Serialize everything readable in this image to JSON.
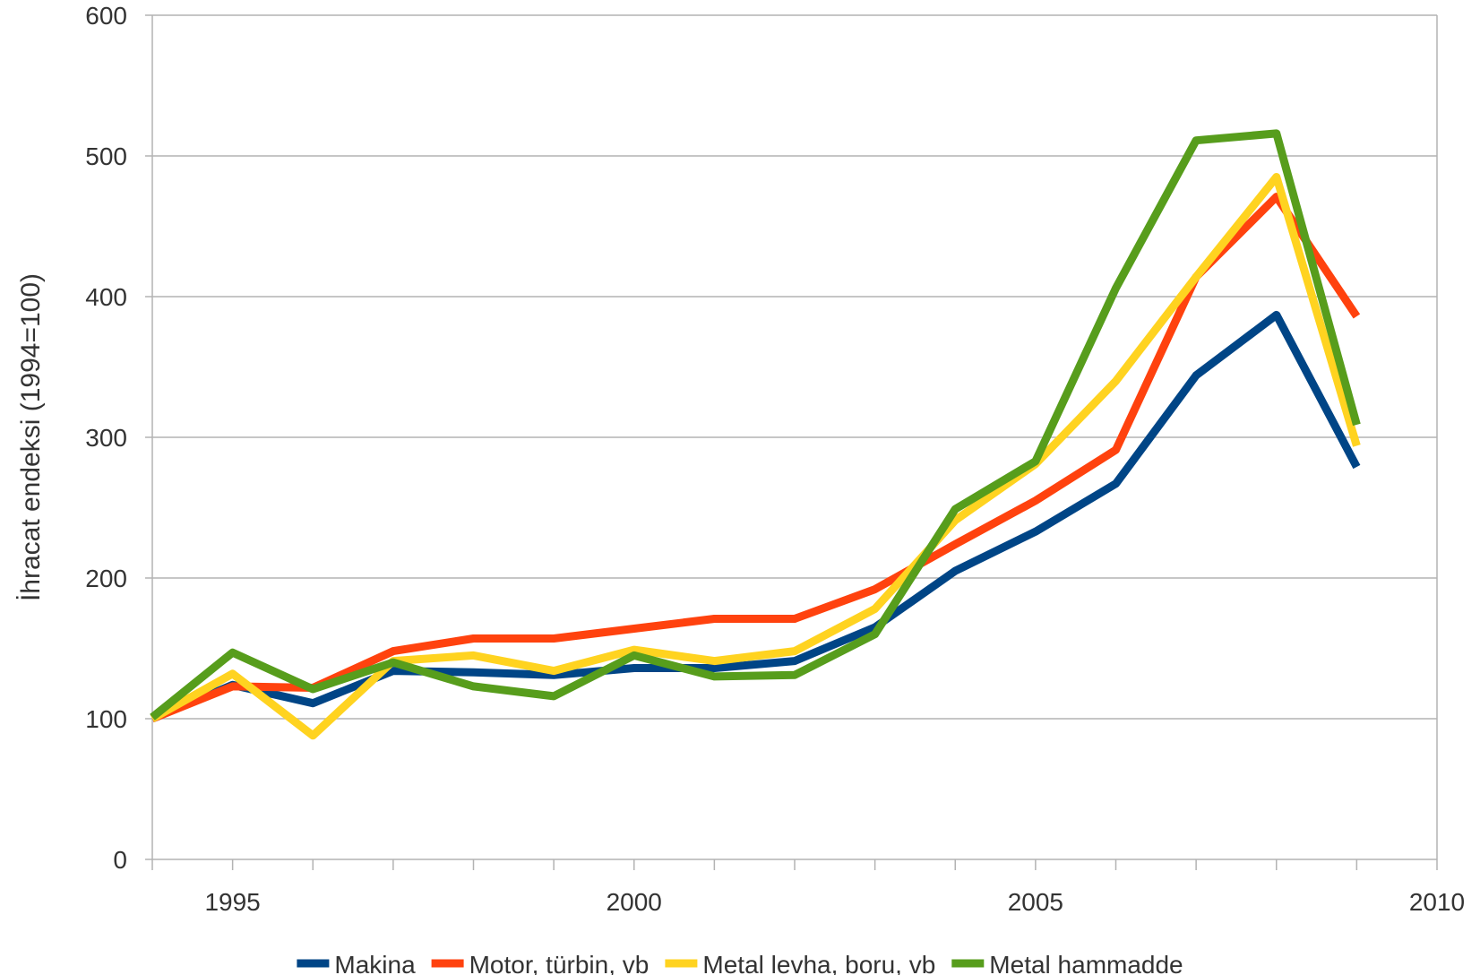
{
  "chart_data": {
    "type": "line",
    "title": "",
    "xlabel": "",
    "ylabel": "İhracat endeksi (1994=100)",
    "xlim": [
      1994,
      2010
    ],
    "ylim": [
      0,
      600
    ],
    "x_ticks": [
      1995,
      2000,
      2005,
      2010
    ],
    "y_ticks": [
      0,
      100,
      200,
      300,
      400,
      500,
      600
    ],
    "grid": true,
    "legend_position": "bottom",
    "x": [
      1994,
      1995,
      1996,
      1997,
      1998,
      1999,
      2000,
      2001,
      2002,
      2003,
      2004,
      2005,
      2006,
      2007,
      2008,
      2009
    ],
    "series": [
      {
        "name": "Makina",
        "color": "#004586",
        "values": [
          100,
          124,
          111,
          134,
          133,
          131,
          136,
          136,
          141,
          165,
          205,
          233,
          267,
          344,
          387,
          279
        ]
      },
      {
        "name": "Motor, türbin, vb",
        "color": "#ff420e",
        "values": [
          100,
          123,
          122,
          148,
          157,
          157,
          164,
          171,
          171,
          192,
          224,
          255,
          291,
          414,
          471,
          386
        ]
      },
      {
        "name": "Metal levha, boru, vb",
        "color": "#ffd320",
        "values": [
          100,
          132,
          88,
          141,
          145,
          134,
          149,
          141,
          148,
          178,
          241,
          281,
          340,
          414,
          485,
          294
        ]
      },
      {
        "name": "Metal hammadde",
        "color": "#579d1c",
        "values": [
          101,
          147,
          121,
          140,
          123,
          116,
          145,
          130,
          131,
          160,
          249,
          283,
          406,
          511,
          516,
          309
        ]
      }
    ]
  }
}
